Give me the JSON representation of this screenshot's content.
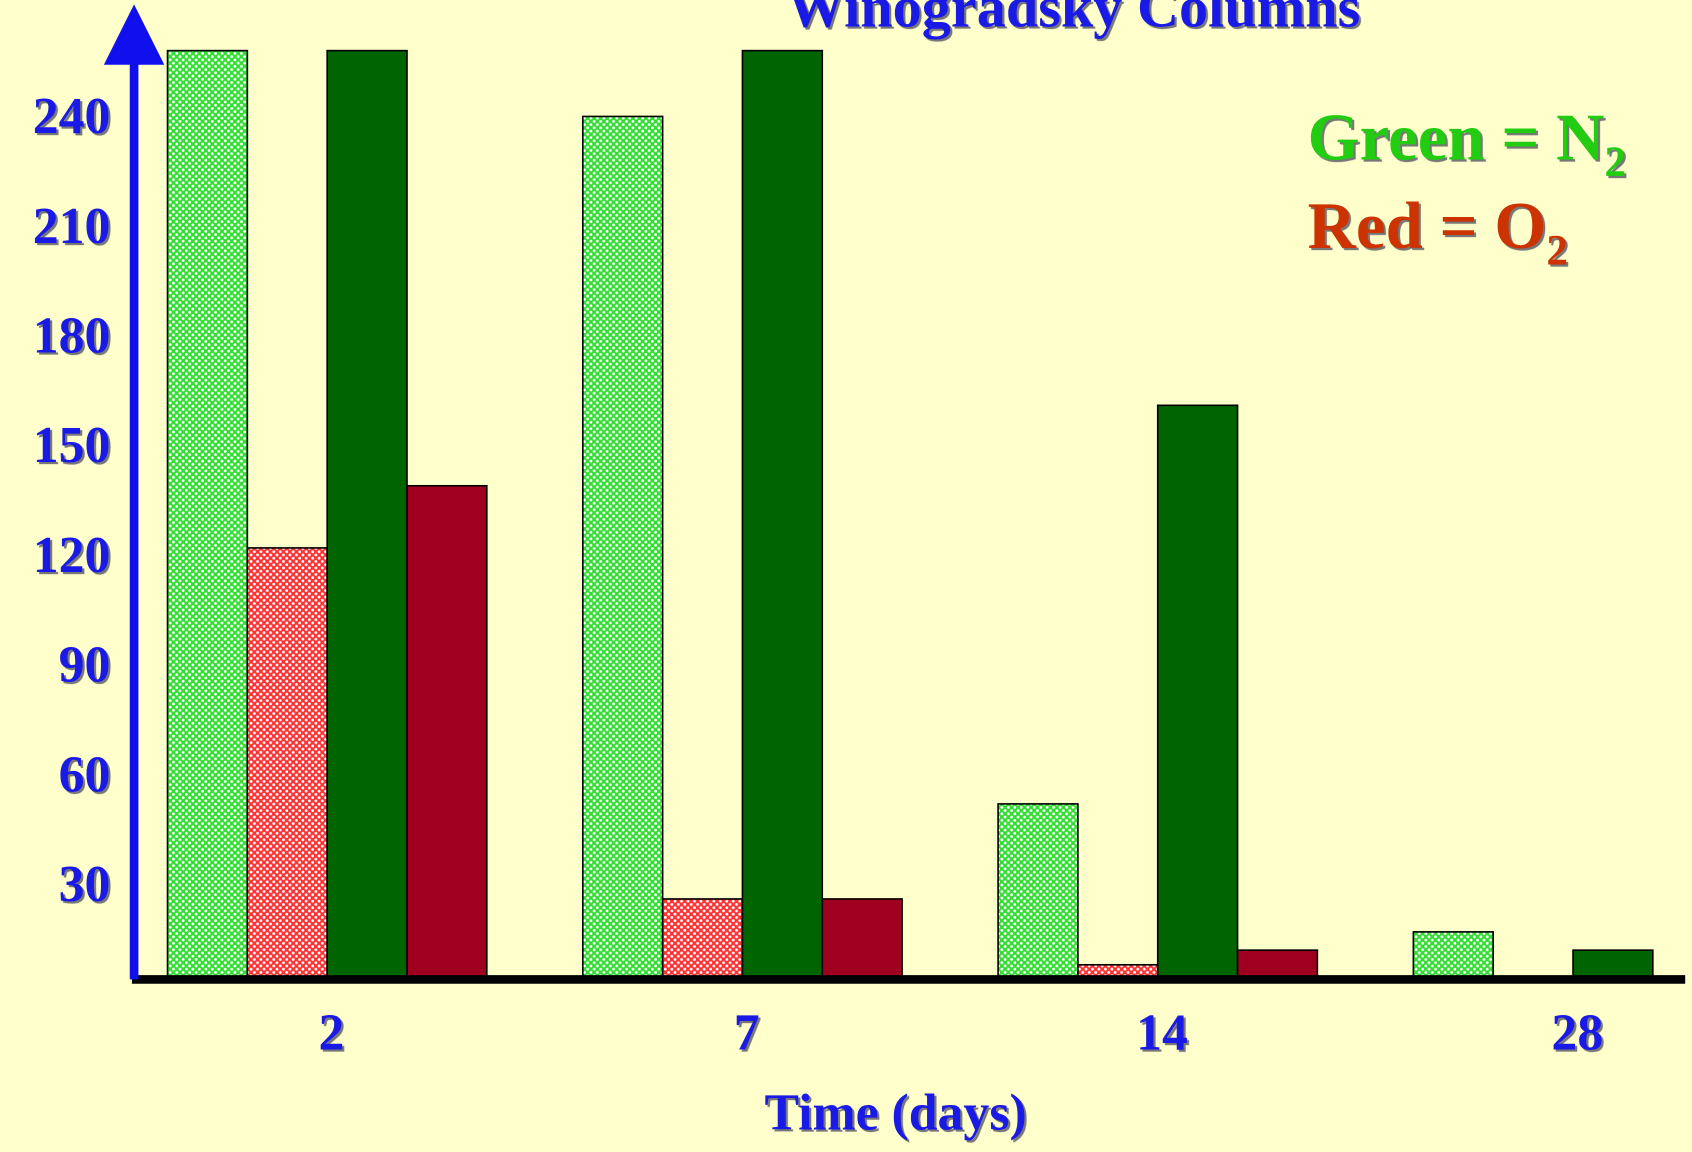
{
  "chart_data": {
    "type": "bar",
    "title": "Winogradsky Columns",
    "x_label": "Time (days)",
    "categories": [
      "2",
      "7",
      "14",
      "28"
    ],
    "series": [
      {
        "color": "#33dd33",
        "pattern": true,
        "values": [
          254,
          236,
          48,
          13
        ]
      },
      {
        "color": "#ff3333",
        "pattern": true,
        "values": [
          118,
          22,
          4,
          null
        ]
      },
      {
        "color": "#006400",
        "pattern": false,
        "values": [
          254,
          254,
          157,
          8
        ]
      },
      {
        "color": "#a00020",
        "pattern": false,
        "values": [
          135,
          22,
          8,
          null
        ]
      }
    ],
    "legend": [
      {
        "text": "Green = N",
        "sub": "2",
        "color": "#22cc11"
      },
      {
        "text": "Red = O",
        "sub": "2",
        "color": "#cc3300"
      }
    ],
    "ylim": [
      0,
      260
    ],
    "yticks": [
      30,
      60,
      90,
      120,
      150,
      180,
      210,
      240
    ],
    "grid": false
  }
}
